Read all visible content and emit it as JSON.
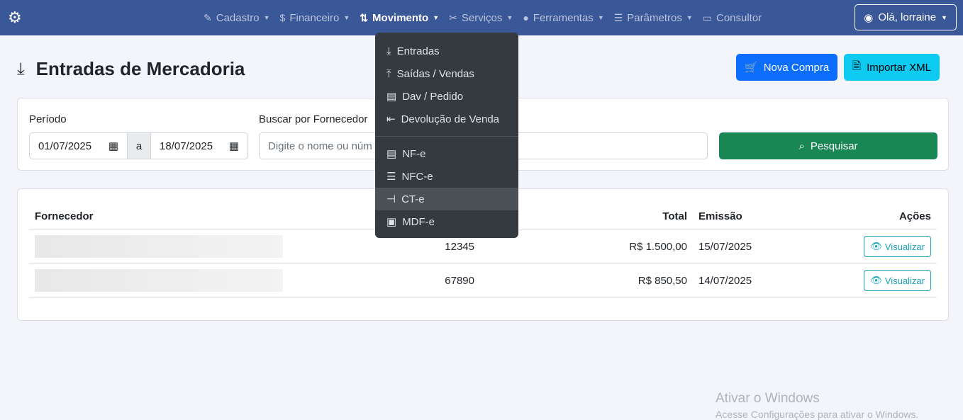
{
  "nav": {
    "items": [
      {
        "label": "Cadastro",
        "icon": "edit-icon",
        "caret": true
      },
      {
        "label": "Financeiro",
        "icon": "money-icon",
        "caret": true
      },
      {
        "label": "Movimento",
        "icon": "arrows-updown-icon",
        "caret": true,
        "active": true
      },
      {
        "label": "Serviços",
        "icon": "tools-icon",
        "caret": true
      },
      {
        "label": "Ferramentas",
        "icon": "wrench-icon",
        "caret": true
      },
      {
        "label": "Parâmetros",
        "icon": "sliders-icon",
        "caret": true
      },
      {
        "label": "Consultor",
        "icon": "monitor-icon",
        "caret": false
      }
    ],
    "user": "Olá, lorraine"
  },
  "page": {
    "title": "Entradas de Mercadoria",
    "new_button": "Nova Compra",
    "import_button": "Importar XML"
  },
  "filter": {
    "period_label": "Período",
    "date_from": "01/07/2025",
    "sep": "a",
    "date_to": "18/07/2025",
    "supplier_label": "Buscar por Fornecedor",
    "supplier_placeholder": "Digite o nome ou núm",
    "search_button": "Pesquisar"
  },
  "table": {
    "headers": [
      "Fornecedor",
      "",
      "Total",
      "Emissão",
      "Ações"
    ],
    "rows": [
      {
        "number": "12345",
        "total": "R$ 1.500,00",
        "date": "15/07/2025",
        "action": "Visualizar"
      },
      {
        "number": "67890",
        "total": "R$ 850,50",
        "date": "14/07/2025",
        "action": "Visualizar"
      }
    ]
  },
  "dropdown": {
    "group1": [
      {
        "label": "Entradas",
        "icon": "inbox-in-icon"
      },
      {
        "label": "Saídas / Vendas",
        "icon": "box-out-icon"
      },
      {
        "label": "Dav / Pedido",
        "icon": "document-icon"
      },
      {
        "label": "Devolução de Venda",
        "icon": "return-icon"
      }
    ],
    "group2": [
      {
        "label": "NF-e",
        "icon": "file-icon"
      },
      {
        "label": "NFC-e",
        "icon": "receipt-icon"
      },
      {
        "label": "CT-e",
        "icon": "signpost-icon",
        "highlighted": true
      },
      {
        "label": "MDF-e",
        "icon": "bus-icon"
      }
    ]
  },
  "watermark": {
    "title": "Ativar o Windows",
    "subtitle": "Acesse Configurações para ativar o Windows."
  },
  "colors": {
    "nav": "#3a5797",
    "primary": "#0d6efd",
    "info": "#0dcaf0",
    "success": "#198754"
  }
}
